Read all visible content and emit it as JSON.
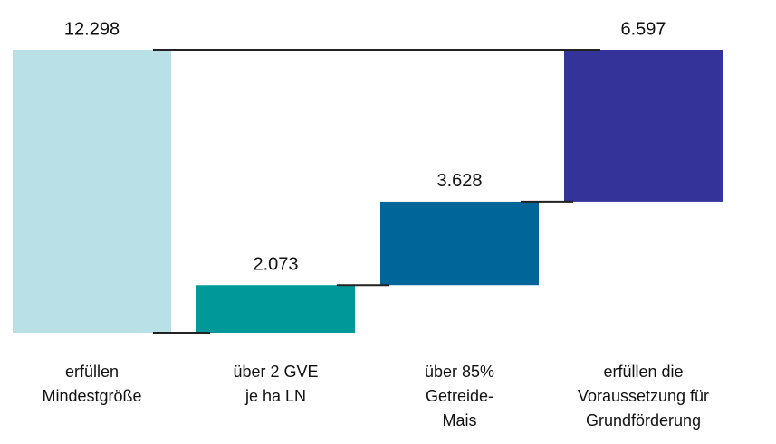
{
  "chart_data": {
    "type": "waterfall",
    "categories": [
      [
        "erfüllen",
        "Mindestgröße"
      ],
      [
        "über 2 GVE",
        "je ha LN"
      ],
      [
        "über 85%",
        "Getreide-",
        "Mais"
      ],
      [
        "erfüllen die",
        "Voraussetzung für",
        "Grundförderung"
      ]
    ],
    "values": [
      12298,
      2073,
      3628,
      6597
    ],
    "value_labels": [
      "12.298",
      "2.073",
      "3.628",
      "6.597"
    ],
    "colors": [
      "#b8e0e6",
      "#009999",
      "#006699",
      "#333399"
    ]
  }
}
